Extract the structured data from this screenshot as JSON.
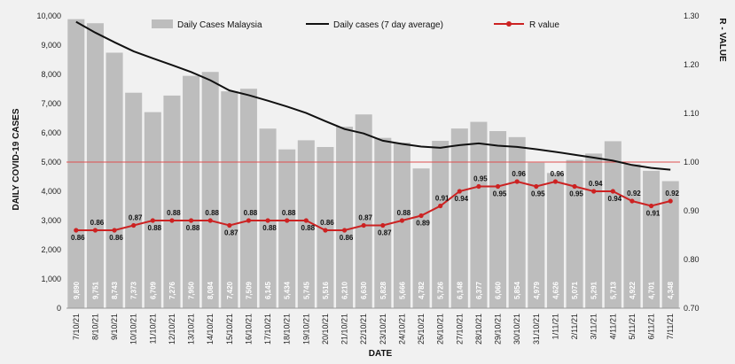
{
  "chart_data": {
    "type": "bar",
    "categories": [
      "7/10/21",
      "8/10/21",
      "9/10/21",
      "10/10/21",
      "11/10/21",
      "12/10/21",
      "13/10/21",
      "14/10/21",
      "15/10/21",
      "16/10/21",
      "17/10/21",
      "18/10/21",
      "19/10/21",
      "20/10/21",
      "21/10/21",
      "22/10/21",
      "23/10/21",
      "24/10/21",
      "25/10/21",
      "26/10/21",
      "27/10/21",
      "28/10/21",
      "29/10/21",
      "30/10/21",
      "31/10/21",
      "1/11/21",
      "2/11/21",
      "3/11/21",
      "4/11/21",
      "5/11/21",
      "6/11/21",
      "7/11/21"
    ],
    "series": [
      {
        "name": "Daily Cases Malaysia",
        "type": "bar",
        "axis": "left",
        "color": "#bdbdbd",
        "values": [
          9890,
          9751,
          8743,
          7373,
          6709,
          7276,
          7950,
          8084,
          7420,
          7509,
          6145,
          5434,
          5745,
          5516,
          6210,
          6630,
          5828,
          5666,
          4782,
          5726,
          6148,
          6377,
          6060,
          5854,
          4979,
          4626,
          5071,
          5291,
          5713,
          4922,
          4701,
          4348
        ],
        "labels": [
          "9,890",
          "9,751",
          "8,743",
          "7,373",
          "6,709",
          "7,276",
          "7,950",
          "8,084",
          "7,420",
          "7,509",
          "6,145",
          "5,434",
          "5,745",
          "5,516",
          "6,210",
          "6,630",
          "5,828",
          "5,666",
          "4,782",
          "5,726",
          "6,148",
          "6,377",
          "6,060",
          "5,854",
          "4,979",
          "4,626",
          "5,071",
          "5,291",
          "5,713",
          "4,922",
          "4,701",
          "4,348"
        ]
      },
      {
        "name": "Daily cases (7 day average)",
        "type": "line",
        "axis": "left",
        "color": "#111111",
        "values": [
          9800,
          9430,
          9100,
          8790,
          8550,
          8320,
          8080,
          7800,
          7450,
          7290,
          7100,
          6900,
          6680,
          6400,
          6130,
          5980,
          5730,
          5620,
          5530,
          5490,
          5580,
          5640,
          5560,
          5520,
          5440,
          5350,
          5250,
          5150,
          5050,
          4900,
          4800,
          4740
        ]
      },
      {
        "name": "R value",
        "type": "line",
        "axis": "right",
        "color": "#cc2222",
        "values": [
          0.86,
          0.86,
          0.86,
          0.87,
          0.88,
          0.88,
          0.88,
          0.88,
          0.87,
          0.88,
          0.88,
          0.88,
          0.88,
          0.86,
          0.86,
          0.87,
          0.87,
          0.88,
          0.89,
          0.91,
          0.94,
          0.95,
          0.95,
          0.96,
          0.95,
          0.96,
          0.95,
          0.94,
          0.94,
          0.92,
          0.91,
          0.92
        ],
        "labels": [
          "0.86",
          "0.86",
          "0.86",
          "0.87",
          "0.88",
          "0.88",
          "0.88",
          "0.88",
          "0.87",
          "0.88",
          "0.88",
          "0.88",
          "0.88",
          "0.86",
          "0.86",
          "0.87",
          "0.87",
          "0.88",
          "0.89",
          "0.91",
          "0.94",
          "0.95",
          "0.95",
          "0.96",
          "0.95",
          "0.96",
          "0.95",
          "0.94",
          "0.94",
          "0.92",
          "0.91",
          "0.92"
        ]
      }
    ],
    "xlabel": "DATE",
    "ylabel": "DAILY COVID-19 CASES",
    "y2label": "R - VALUE",
    "ylim": [
      0,
      10000
    ],
    "y_ticks": [
      "0",
      "1,000",
      "2,000",
      "3,000",
      "4,000",
      "5,000",
      "6,000",
      "7,000",
      "8,000",
      "9,000",
      "10,000"
    ],
    "y2lim": [
      0.7,
      1.3
    ],
    "y2_ticks": [
      "0.70",
      "0.80",
      "0.90",
      "1.00",
      "1.10",
      "1.20",
      "1.30"
    ],
    "reference_line": {
      "axis": "right",
      "value": 1.0,
      "color": "#e05050"
    },
    "legend_position": "top",
    "grid": false
  }
}
